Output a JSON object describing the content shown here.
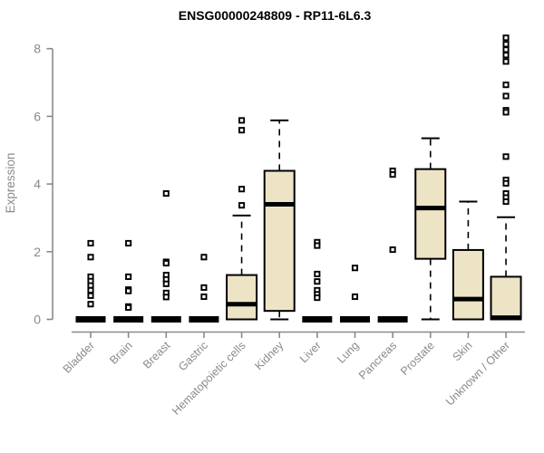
{
  "title": "ENSG00000248809 - RP11-6L6.3",
  "chart_data": {
    "type": "boxplot",
    "title": "ENSG00000248809 - RP11-6L6.3",
    "xlabel": "",
    "ylabel": "Expression",
    "ylim": [
      0,
      8.4
    ],
    "yticks": [
      0,
      2,
      4,
      6,
      8
    ],
    "grid": false,
    "legend": "none",
    "categories": [
      "Bladder",
      "Brain",
      "Breast",
      "Gastric",
      "Hematopoietic cells",
      "Kidney",
      "Liver",
      "Lung",
      "Pancreas",
      "Prostate",
      "Skin",
      "Unknown / Other"
    ],
    "boxes": [
      {
        "label": "Bladder",
        "q1": 0,
        "median": 0,
        "q3": 0,
        "whisker_low": 0,
        "whisker_high": 0,
        "outliers": [
          2.25,
          1.84,
          1.26,
          1.13,
          1.0,
          0.86,
          0.7,
          0.45
        ]
      },
      {
        "label": "Brain",
        "q1": 0,
        "median": 0,
        "q3": 0,
        "whisker_low": 0,
        "whisker_high": 0,
        "outliers": [
          2.25,
          1.26,
          0.88,
          0.84,
          0.38,
          0.35
        ]
      },
      {
        "label": "Breast",
        "q1": 0,
        "median": 0,
        "q3": 0,
        "whisker_low": 0,
        "whisker_high": 0,
        "outliers": [
          3.72,
          1.7,
          1.66,
          1.31,
          1.18,
          1.05,
          0.78,
          0.66
        ]
      },
      {
        "label": "Gastric",
        "q1": 0,
        "median": 0,
        "q3": 0,
        "whisker_low": 0,
        "whisker_high": 0,
        "outliers": [
          1.84,
          0.94,
          0.67
        ]
      },
      {
        "label": "Hematopoietic cells",
        "q1": 0,
        "median": 0.45,
        "q3": 1.31,
        "whisker_low": 0,
        "whisker_high": 3.07,
        "outliers": [
          5.88,
          5.59,
          3.85,
          3.37
        ]
      },
      {
        "label": "Kidney",
        "q1": 0.25,
        "median": 3.4,
        "q3": 4.39,
        "whisker_low": 0,
        "whisker_high": 5.88,
        "outliers": []
      },
      {
        "label": "Liver",
        "q1": 0,
        "median": 0,
        "q3": 0,
        "whisker_low": 0,
        "whisker_high": 0,
        "outliers": [
          2.28,
          2.18,
          1.34,
          1.12,
          0.86,
          0.74,
          0.64
        ]
      },
      {
        "label": "Lung",
        "q1": 0,
        "median": 0,
        "q3": 0,
        "whisker_low": 0,
        "whisker_high": 0,
        "outliers": [
          1.52,
          0.67
        ]
      },
      {
        "label": "Pancreas",
        "q1": 0,
        "median": 0,
        "q3": 0,
        "whisker_low": 0,
        "whisker_high": 0,
        "outliers": [
          4.39,
          4.28,
          2.06
        ]
      },
      {
        "label": "Prostate",
        "q1": 1.79,
        "median": 3.29,
        "q3": 4.44,
        "whisker_low": 0,
        "whisker_high": 5.35,
        "outliers": []
      },
      {
        "label": "Skin",
        "q1": 0,
        "median": 0.6,
        "q3": 2.05,
        "whisker_low": 0,
        "whisker_high": 3.48,
        "outliers": []
      },
      {
        "label": "Unknown / Other",
        "q1": 0,
        "median": 0.05,
        "q3": 1.26,
        "whisker_low": 0,
        "whisker_high": 3.02,
        "outliers": [
          8.32,
          8.13,
          7.97,
          7.81,
          7.62,
          6.93,
          6.6,
          6.18,
          6.12,
          4.81,
          4.12,
          4.02,
          3.72,
          3.6,
          3.48
        ]
      }
    ],
    "colors": {
      "box_fill": "#EDE4C6",
      "box_stroke": "#000000",
      "median": "#000000",
      "whisker": "#000000",
      "outlier": "#000000",
      "axis": "#8a8a8a",
      "tick_label": "#8a8a8a",
      "title": "#000000",
      "background": "#ffffff"
    }
  }
}
